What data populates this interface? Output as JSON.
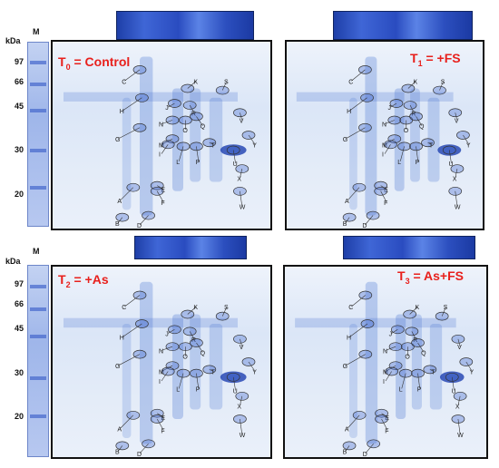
{
  "marker_label": "M",
  "kda_label": "kDa",
  "ticks": [
    "97",
    "66",
    "45",
    "30",
    "20"
  ],
  "spot_labels": [
    "A",
    "B",
    "C",
    "D",
    "E",
    "F",
    "G",
    "H",
    "I",
    "J",
    "K",
    "L",
    "M",
    "N",
    "O",
    "P",
    "Q",
    "R",
    "S",
    "T",
    "U",
    "V",
    "W",
    "X",
    "Y"
  ],
  "panels": [
    {
      "title_prefix": "T",
      "title_sub": "0",
      "title_rest": " = Control",
      "title_color": "#e8201c"
    },
    {
      "title_prefix": "T",
      "title_sub": "1",
      "title_rest": " = +FS",
      "title_color": "#e8201c"
    },
    {
      "title_prefix": "T",
      "title_sub": "2",
      "title_rest": " = +As",
      "title_color": "#e8201c"
    },
    {
      "title_prefix": "T",
      "title_sub": "3",
      "title_rest": " = As+FS",
      "title_color": "#e8201c"
    }
  ]
}
